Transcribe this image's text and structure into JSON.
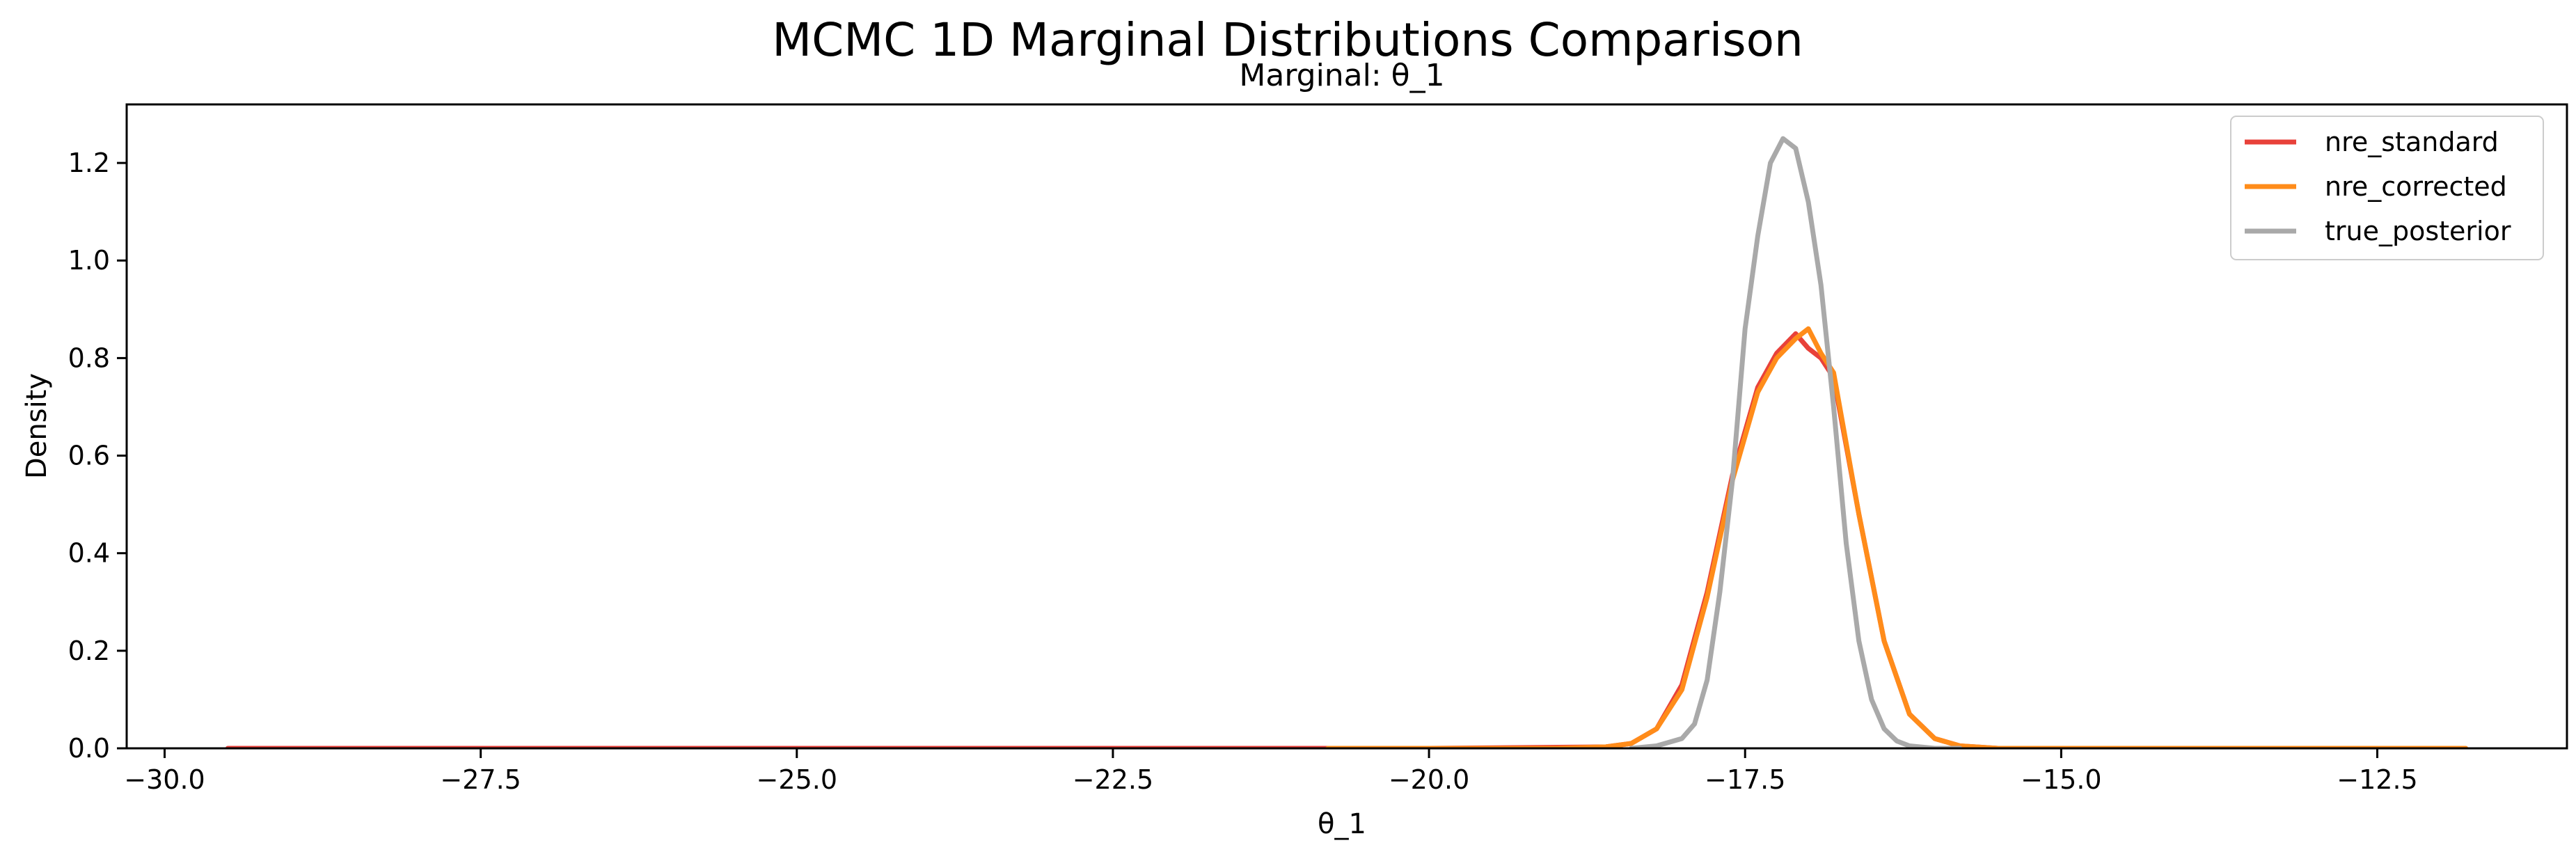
{
  "chart_data": {
    "type": "line",
    "title": "MCMC 1D Marginal Distributions Comparison",
    "subtitle": "Marginal: θ_1",
    "xlabel": "θ_1",
    "ylabel": "Density",
    "xlim": [
      -30.3,
      -11.0
    ],
    "ylim": [
      0.0,
      1.32
    ],
    "xticks": [
      -30.0,
      -27.5,
      -25.0,
      -22.5,
      -20.0,
      -17.5,
      -15.0,
      -12.5
    ],
    "xtick_labels": [
      "−30.0",
      "−27.5",
      "−25.0",
      "−22.5",
      "−20.0",
      "−17.5",
      "−15.0",
      "−12.5"
    ],
    "yticks": [
      0.0,
      0.2,
      0.4,
      0.6,
      0.8,
      1.0,
      1.2
    ],
    "ytick_labels": [
      "0.0",
      "0.2",
      "0.4",
      "0.6",
      "0.8",
      "1.0",
      "1.2"
    ],
    "grid": false,
    "legend_position": "top-right",
    "series": [
      {
        "name": "nre_standard",
        "color": "#e8413a",
        "x": [
          -29.5,
          -25.0,
          -20.0,
          -18.6,
          -18.4,
          -18.2,
          -18.0,
          -17.8,
          -17.6,
          -17.4,
          -17.25,
          -17.1,
          -17.0,
          -16.9,
          -16.8,
          -16.6,
          -16.4,
          -16.2,
          -16.0,
          -15.8,
          -15.5,
          -15.0,
          -12.0
        ],
        "y": [
          0.0,
          0.0,
          0.0,
          0.003,
          0.01,
          0.04,
          0.13,
          0.32,
          0.56,
          0.74,
          0.81,
          0.85,
          0.82,
          0.8,
          0.76,
          0.48,
          0.22,
          0.07,
          0.02,
          0.005,
          0.0,
          0.0,
          0.0
        ]
      },
      {
        "name": "nre_corrected",
        "color": "#ff8c1a",
        "x": [
          -20.8,
          -19.0,
          -18.6,
          -18.4,
          -18.2,
          -18.0,
          -17.8,
          -17.6,
          -17.4,
          -17.25,
          -17.1,
          -17.0,
          -16.9,
          -16.8,
          -16.6,
          -16.4,
          -16.2,
          -16.0,
          -15.8,
          -15.5,
          -15.0,
          -11.8
        ],
        "y": [
          0.0,
          0.0,
          0.003,
          0.01,
          0.04,
          0.12,
          0.31,
          0.55,
          0.73,
          0.8,
          0.84,
          0.86,
          0.81,
          0.77,
          0.48,
          0.22,
          0.07,
          0.02,
          0.005,
          0.0,
          0.0,
          0.0
        ]
      },
      {
        "name": "true_posterior",
        "color": "#a9a9a9",
        "x": [
          -18.4,
          -18.2,
          -18.0,
          -17.9,
          -17.8,
          -17.7,
          -17.6,
          -17.5,
          -17.4,
          -17.3,
          -17.2,
          -17.1,
          -17.0,
          -16.9,
          -16.8,
          -16.7,
          -16.6,
          -16.5,
          -16.4,
          -16.3,
          -16.2,
          -16.0,
          -15.8
        ],
        "y": [
          0.0,
          0.005,
          0.02,
          0.05,
          0.14,
          0.32,
          0.55,
          0.86,
          1.05,
          1.2,
          1.25,
          1.23,
          1.12,
          0.95,
          0.7,
          0.42,
          0.22,
          0.1,
          0.04,
          0.015,
          0.005,
          0.0,
          0.0
        ]
      }
    ]
  }
}
